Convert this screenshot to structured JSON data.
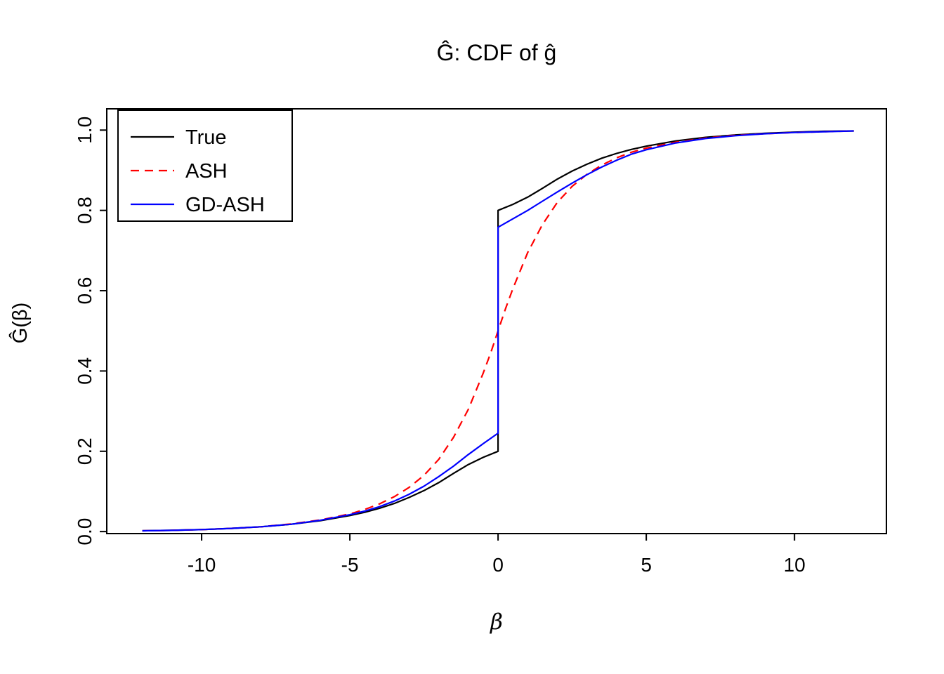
{
  "chart_data": {
    "type": "line",
    "title": "Ĝ: CDF of ĝ",
    "xlabel": "β",
    "ylabel": "Ĝ(β)",
    "xlim": [
      -13.2,
      13.1
    ],
    "ylim": [
      -0.005,
      1.053
    ],
    "x_ticks": [
      -10,
      -5,
      0,
      5,
      10
    ],
    "x_tick_labels": [
      "-10",
      "-5",
      "0",
      "5",
      "10"
    ],
    "y_ticks": [
      0,
      0.2,
      0.4,
      0.6,
      0.8,
      1.0
    ],
    "y_tick_labels": [
      "0.0",
      "0.2",
      "0.4",
      "0.6",
      "0.8",
      "1.0"
    ],
    "grid": false,
    "legend": {
      "position": "top-left",
      "labels": [
        "True",
        "ASH",
        "GD-ASH"
      ]
    },
    "series": [
      {
        "name": "True",
        "color": "#000000",
        "dash": null,
        "points": [
          [
            -12,
            0.002
          ],
          [
            -11,
            0.003
          ],
          [
            -10,
            0.005
          ],
          [
            -9,
            0.008
          ],
          [
            -8,
            0.012
          ],
          [
            -7,
            0.018
          ],
          [
            -6,
            0.027
          ],
          [
            -5,
            0.04
          ],
          [
            -4.5,
            0.048
          ],
          [
            -4,
            0.058
          ],
          [
            -3.5,
            0.07
          ],
          [
            -3,
            0.085
          ],
          [
            -2.5,
            0.102
          ],
          [
            -2,
            0.122
          ],
          [
            -1.5,
            0.145
          ],
          [
            -1,
            0.167
          ],
          [
            -0.5,
            0.185
          ],
          [
            0,
            0.2
          ],
          [
            0,
            0.8
          ],
          [
            0.5,
            0.815
          ],
          [
            1,
            0.833
          ],
          [
            1.5,
            0.855
          ],
          [
            2,
            0.878
          ],
          [
            2.5,
            0.898
          ],
          [
            3,
            0.915
          ],
          [
            3.5,
            0.93
          ],
          [
            4,
            0.942
          ],
          [
            4.5,
            0.952
          ],
          [
            5,
            0.96
          ],
          [
            6,
            0.973
          ],
          [
            7,
            0.982
          ],
          [
            8,
            0.988
          ],
          [
            9,
            0.992
          ],
          [
            10,
            0.995
          ],
          [
            11,
            0.997
          ],
          [
            12,
            0.998
          ]
        ]
      },
      {
        "name": "ASH",
        "color": "#ff0000",
        "dash": "12,8",
        "points": [
          [
            -12,
            0.002
          ],
          [
            -11,
            0.003
          ],
          [
            -10,
            0.005
          ],
          [
            -9,
            0.008
          ],
          [
            -8,
            0.012
          ],
          [
            -7,
            0.019
          ],
          [
            -6,
            0.029
          ],
          [
            -5,
            0.044
          ],
          [
            -4.5,
            0.055
          ],
          [
            -4,
            0.069
          ],
          [
            -3.5,
            0.087
          ],
          [
            -3,
            0.11
          ],
          [
            -2.5,
            0.14
          ],
          [
            -2,
            0.18
          ],
          [
            -1.5,
            0.235
          ],
          [
            -1,
            0.305
          ],
          [
            -0.5,
            0.395
          ],
          [
            -0.25,
            0.445
          ],
          [
            0,
            0.5
          ],
          [
            0.25,
            0.555
          ],
          [
            0.5,
            0.605
          ],
          [
            1,
            0.695
          ],
          [
            1.5,
            0.765
          ],
          [
            2,
            0.82
          ],
          [
            2.5,
            0.86
          ],
          [
            3,
            0.89
          ],
          [
            3.5,
            0.913
          ],
          [
            4,
            0.931
          ],
          [
            4.5,
            0.945
          ],
          [
            5,
            0.955
          ],
          [
            6,
            0.97
          ],
          [
            7,
            0.98
          ],
          [
            8,
            0.987
          ],
          [
            9,
            0.991
          ],
          [
            10,
            0.994
          ],
          [
            11,
            0.996
          ],
          [
            12,
            0.998
          ]
        ]
      },
      {
        "name": "GD-ASH",
        "color": "#0000ff",
        "dash": null,
        "points": [
          [
            -12,
            0.002
          ],
          [
            -11,
            0.003
          ],
          [
            -10,
            0.005
          ],
          [
            -9,
            0.008
          ],
          [
            -8,
            0.012
          ],
          [
            -7,
            0.018
          ],
          [
            -6,
            0.028
          ],
          [
            -5,
            0.042
          ],
          [
            -4.5,
            0.051
          ],
          [
            -4,
            0.062
          ],
          [
            -3.5,
            0.076
          ],
          [
            -3,
            0.093
          ],
          [
            -2.5,
            0.113
          ],
          [
            -2,
            0.137
          ],
          [
            -1.5,
            0.163
          ],
          [
            -1,
            0.192
          ],
          [
            -0.5,
            0.219
          ],
          [
            0,
            0.245
          ],
          [
            0,
            0.758
          ],
          [
            0.5,
            0.779
          ],
          [
            1,
            0.8
          ],
          [
            1.5,
            0.823
          ],
          [
            2,
            0.846
          ],
          [
            2.5,
            0.868
          ],
          [
            3,
            0.889
          ],
          [
            3.5,
            0.908
          ],
          [
            4,
            0.925
          ],
          [
            4.5,
            0.94
          ],
          [
            5,
            0.951
          ],
          [
            6,
            0.968
          ],
          [
            7,
            0.979
          ],
          [
            8,
            0.986
          ],
          [
            9,
            0.991
          ],
          [
            10,
            0.994
          ],
          [
            11,
            0.996
          ],
          [
            12,
            0.998
          ]
        ]
      }
    ]
  }
}
